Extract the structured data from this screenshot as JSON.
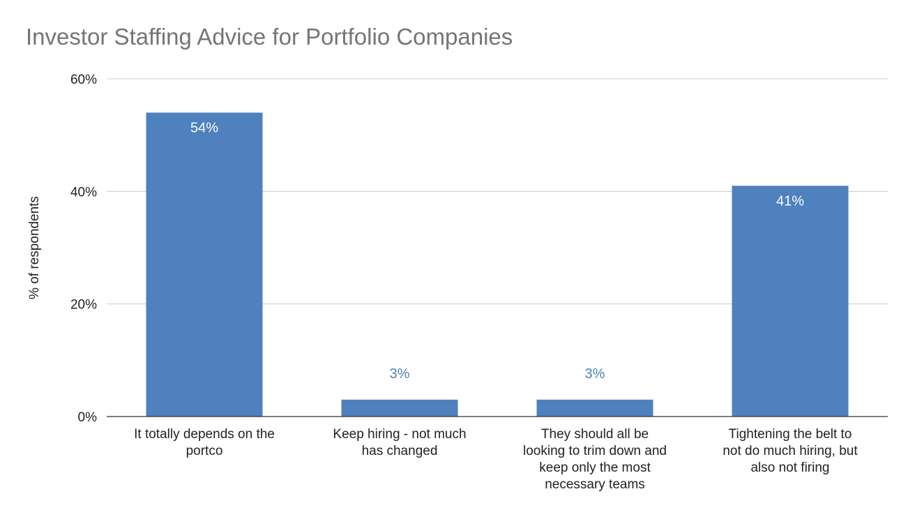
{
  "chart_data": {
    "type": "bar",
    "title": "Investor Staffing Advice for Portfolio Companies",
    "xlabel": "",
    "ylabel": "% of respondents",
    "categories": [
      [
        "It totally depends on the",
        "portco"
      ],
      [
        "Keep hiring - not much",
        "has changed"
      ],
      [
        "They should all be",
        "looking to trim down and",
        "keep only the most",
        "necessary teams"
      ],
      [
        "Tightening the belt to",
        "not do much hiring, but",
        "also not firing"
      ]
    ],
    "values": [
      54,
      3,
      3,
      41
    ],
    "data_labels": [
      "54%",
      "3%",
      "3%",
      "41%"
    ],
    "ylim": [
      0,
      60
    ],
    "yticks": [
      {
        "value": 0,
        "label": "0%"
      },
      {
        "value": 20,
        "label": "20%"
      },
      {
        "value": 40,
        "label": "40%"
      },
      {
        "value": 60,
        "label": "60%"
      }
    ],
    "grid": true,
    "legend": "none",
    "colors": {
      "bar": "#4e81bd",
      "label_inside": "#ffffff",
      "label_outside": "#4e81bd",
      "grid": "#cccccc",
      "axis": "#333333",
      "text": "#222222",
      "title": "#757575"
    }
  }
}
